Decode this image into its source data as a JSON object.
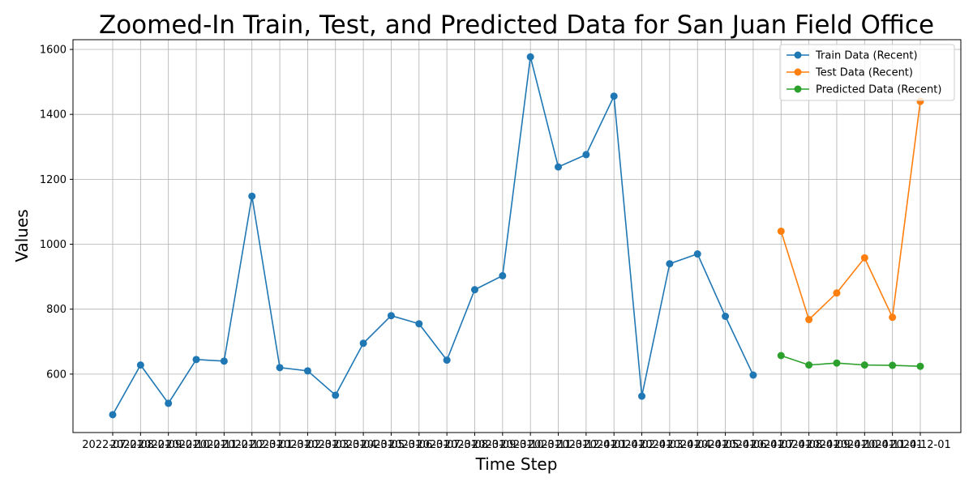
{
  "chart_data": {
    "type": "line",
    "title": "Zoomed-In Train, Test, and Predicted Data for San Juan Field Office",
    "xlabel": "Time Step",
    "ylabel": "Values",
    "x": [
      "2022-07-01",
      "2022-08-01",
      "2022-09-01",
      "2022-10-01",
      "2022-11-01",
      "2022-12-01",
      "2023-01-01",
      "2023-02-01",
      "2023-03-01",
      "2023-04-01",
      "2023-05-01",
      "2023-06-01",
      "2023-07-01",
      "2023-08-01",
      "2023-09-01",
      "2023-10-01",
      "2023-11-01",
      "2023-12-01",
      "2024-01-01",
      "2024-02-01",
      "2024-03-01",
      "2024-04-01",
      "2024-05-01",
      "2024-06-01",
      "2024-07-01",
      "2024-08-01",
      "2024-09-01",
      "2024-10-01",
      "2024-11-01",
      "2024-12-01"
    ],
    "ylim": [
      420,
      1630
    ],
    "yticks": [
      600,
      800,
      1000,
      1200,
      1400,
      1600
    ],
    "grid": true,
    "legend_position": "upper right",
    "series": [
      {
        "name": "Train Data (Recent)",
        "color": "#1f77b4",
        "x": [
          "2022-07-01",
          "2022-08-01",
          "2022-09-01",
          "2022-10-01",
          "2022-11-01",
          "2022-12-01",
          "2023-01-01",
          "2023-02-01",
          "2023-03-01",
          "2023-04-01",
          "2023-05-01",
          "2023-06-01",
          "2023-07-01",
          "2023-08-01",
          "2023-09-01",
          "2023-10-01",
          "2023-11-01",
          "2023-12-01",
          "2024-01-01",
          "2024-02-01",
          "2024-03-01",
          "2024-04-01",
          "2024-05-01",
          "2024-06-01"
        ],
        "values": [
          475,
          628,
          510,
          645,
          640,
          1148,
          620,
          610,
          535,
          695,
          780,
          755,
          643,
          860,
          903,
          1577,
          1238,
          1276,
          1456,
          532,
          940,
          970,
          778,
          597
        ]
      },
      {
        "name": "Test Data (Recent)",
        "color": "#ff7f0e",
        "x": [
          "2024-07-01",
          "2024-08-01",
          "2024-09-01",
          "2024-10-01",
          "2024-11-01",
          "2024-12-01"
        ],
        "values": [
          1040,
          768,
          850,
          958,
          775,
          1440
        ]
      },
      {
        "name": "Predicted Data (Recent)",
        "color": "#2ca02c",
        "x": [
          "2024-07-01",
          "2024-08-01",
          "2024-09-01",
          "2024-10-01",
          "2024-11-01",
          "2024-12-01"
        ],
        "values": [
          657,
          628,
          634,
          628,
          627,
          624
        ]
      }
    ]
  }
}
